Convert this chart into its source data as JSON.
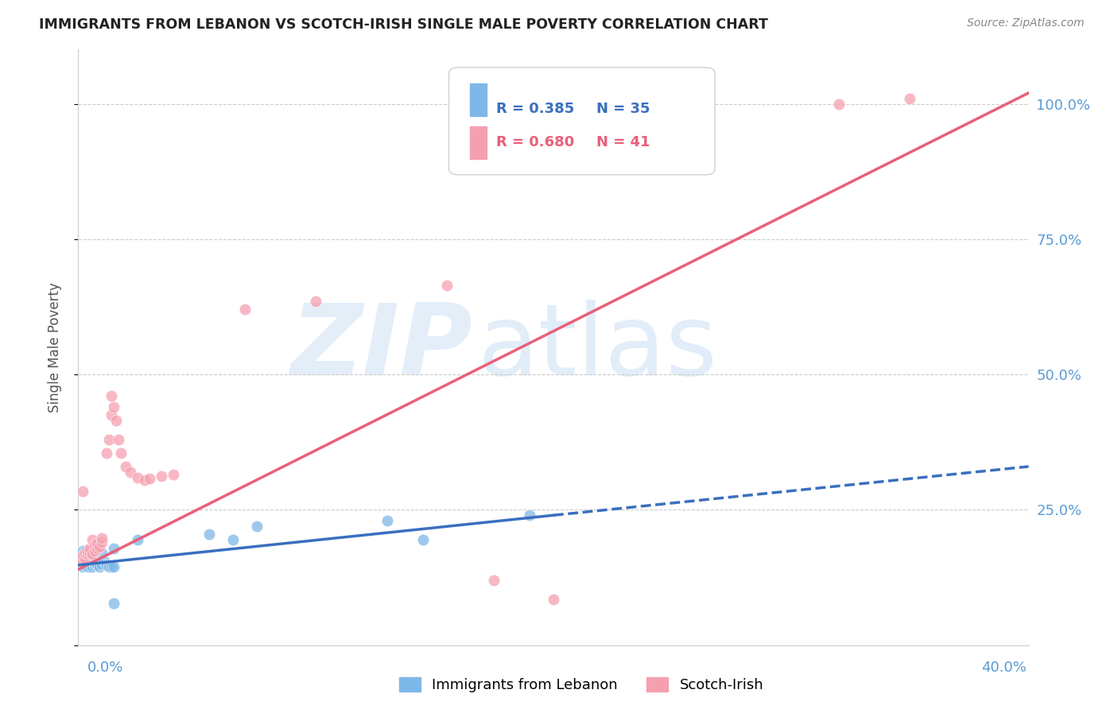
{
  "title": "IMMIGRANTS FROM LEBANON VS SCOTCH-IRISH SINGLE MALE POVERTY CORRELATION CHART",
  "source": "Source: ZipAtlas.com",
  "ylabel": "Single Male Poverty",
  "xlim": [
    0.0,
    0.4
  ],
  "ylim": [
    0.0,
    1.1
  ],
  "legend_blue_r": "R = 0.385",
  "legend_blue_n": "N = 35",
  "legend_pink_r": "R = 0.680",
  "legend_pink_n": "N = 41",
  "blue_label": "Immigrants from Lebanon",
  "pink_label": "Scotch-Irish",
  "blue_color": "#7eb8e8",
  "pink_color": "#f5a0b0",
  "blue_line_color": "#3a6fbf",
  "pink_line_color": "#e8607a",
  "blue_line_solid_end": 0.2,
  "blue_points": [
    [
      0.001,
      0.155
    ],
    [
      0.002,
      0.155
    ],
    [
      0.002,
      0.145
    ],
    [
      0.003,
      0.15
    ],
    [
      0.003,
      0.148
    ],
    [
      0.004,
      0.152
    ],
    [
      0.004,
      0.145
    ],
    [
      0.005,
      0.15
    ],
    [
      0.005,
      0.145
    ],
    [
      0.006,
      0.148
    ],
    [
      0.006,
      0.145
    ],
    [
      0.007,
      0.148
    ],
    [
      0.007,
      0.152
    ],
    [
      0.008,
      0.15
    ],
    [
      0.009,
      0.145
    ],
    [
      0.01,
      0.15
    ],
    [
      0.011,
      0.155
    ],
    [
      0.012,
      0.148
    ],
    [
      0.013,
      0.145
    ],
    [
      0.014,
      0.145
    ],
    [
      0.015,
      0.145
    ],
    [
      0.002,
      0.175
    ],
    [
      0.003,
      0.175
    ],
    [
      0.004,
      0.172
    ],
    [
      0.005,
      0.168
    ],
    [
      0.01,
      0.17
    ],
    [
      0.015,
      0.178
    ],
    [
      0.025,
      0.195
    ],
    [
      0.055,
      0.205
    ],
    [
      0.065,
      0.195
    ],
    [
      0.075,
      0.22
    ],
    [
      0.13,
      0.23
    ],
    [
      0.145,
      0.195
    ],
    [
      0.19,
      0.24
    ],
    [
      0.015,
      0.078
    ]
  ],
  "pink_points": [
    [
      0.001,
      0.155
    ],
    [
      0.002,
      0.155
    ],
    [
      0.002,
      0.165
    ],
    [
      0.003,
      0.158
    ],
    [
      0.003,
      0.17
    ],
    [
      0.004,
      0.168
    ],
    [
      0.004,
      0.175
    ],
    [
      0.005,
      0.172
    ],
    [
      0.005,
      0.178
    ],
    [
      0.006,
      0.168
    ],
    [
      0.006,
      0.195
    ],
    [
      0.007,
      0.175
    ],
    [
      0.007,
      0.185
    ],
    [
      0.008,
      0.178
    ],
    [
      0.008,
      0.188
    ],
    [
      0.009,
      0.182
    ],
    [
      0.01,
      0.19
    ],
    [
      0.01,
      0.198
    ],
    [
      0.012,
      0.355
    ],
    [
      0.013,
      0.38
    ],
    [
      0.014,
      0.425
    ],
    [
      0.014,
      0.46
    ],
    [
      0.015,
      0.44
    ],
    [
      0.016,
      0.415
    ],
    [
      0.017,
      0.38
    ],
    [
      0.018,
      0.355
    ],
    [
      0.02,
      0.33
    ],
    [
      0.022,
      0.32
    ],
    [
      0.025,
      0.31
    ],
    [
      0.028,
      0.305
    ],
    [
      0.03,
      0.308
    ],
    [
      0.035,
      0.312
    ],
    [
      0.04,
      0.315
    ],
    [
      0.1,
      0.635
    ],
    [
      0.155,
      0.665
    ],
    [
      0.32,
      1.0
    ],
    [
      0.35,
      1.01
    ],
    [
      0.175,
      0.12
    ],
    [
      0.2,
      0.085
    ],
    [
      0.07,
      0.62
    ],
    [
      0.002,
      0.285
    ]
  ]
}
